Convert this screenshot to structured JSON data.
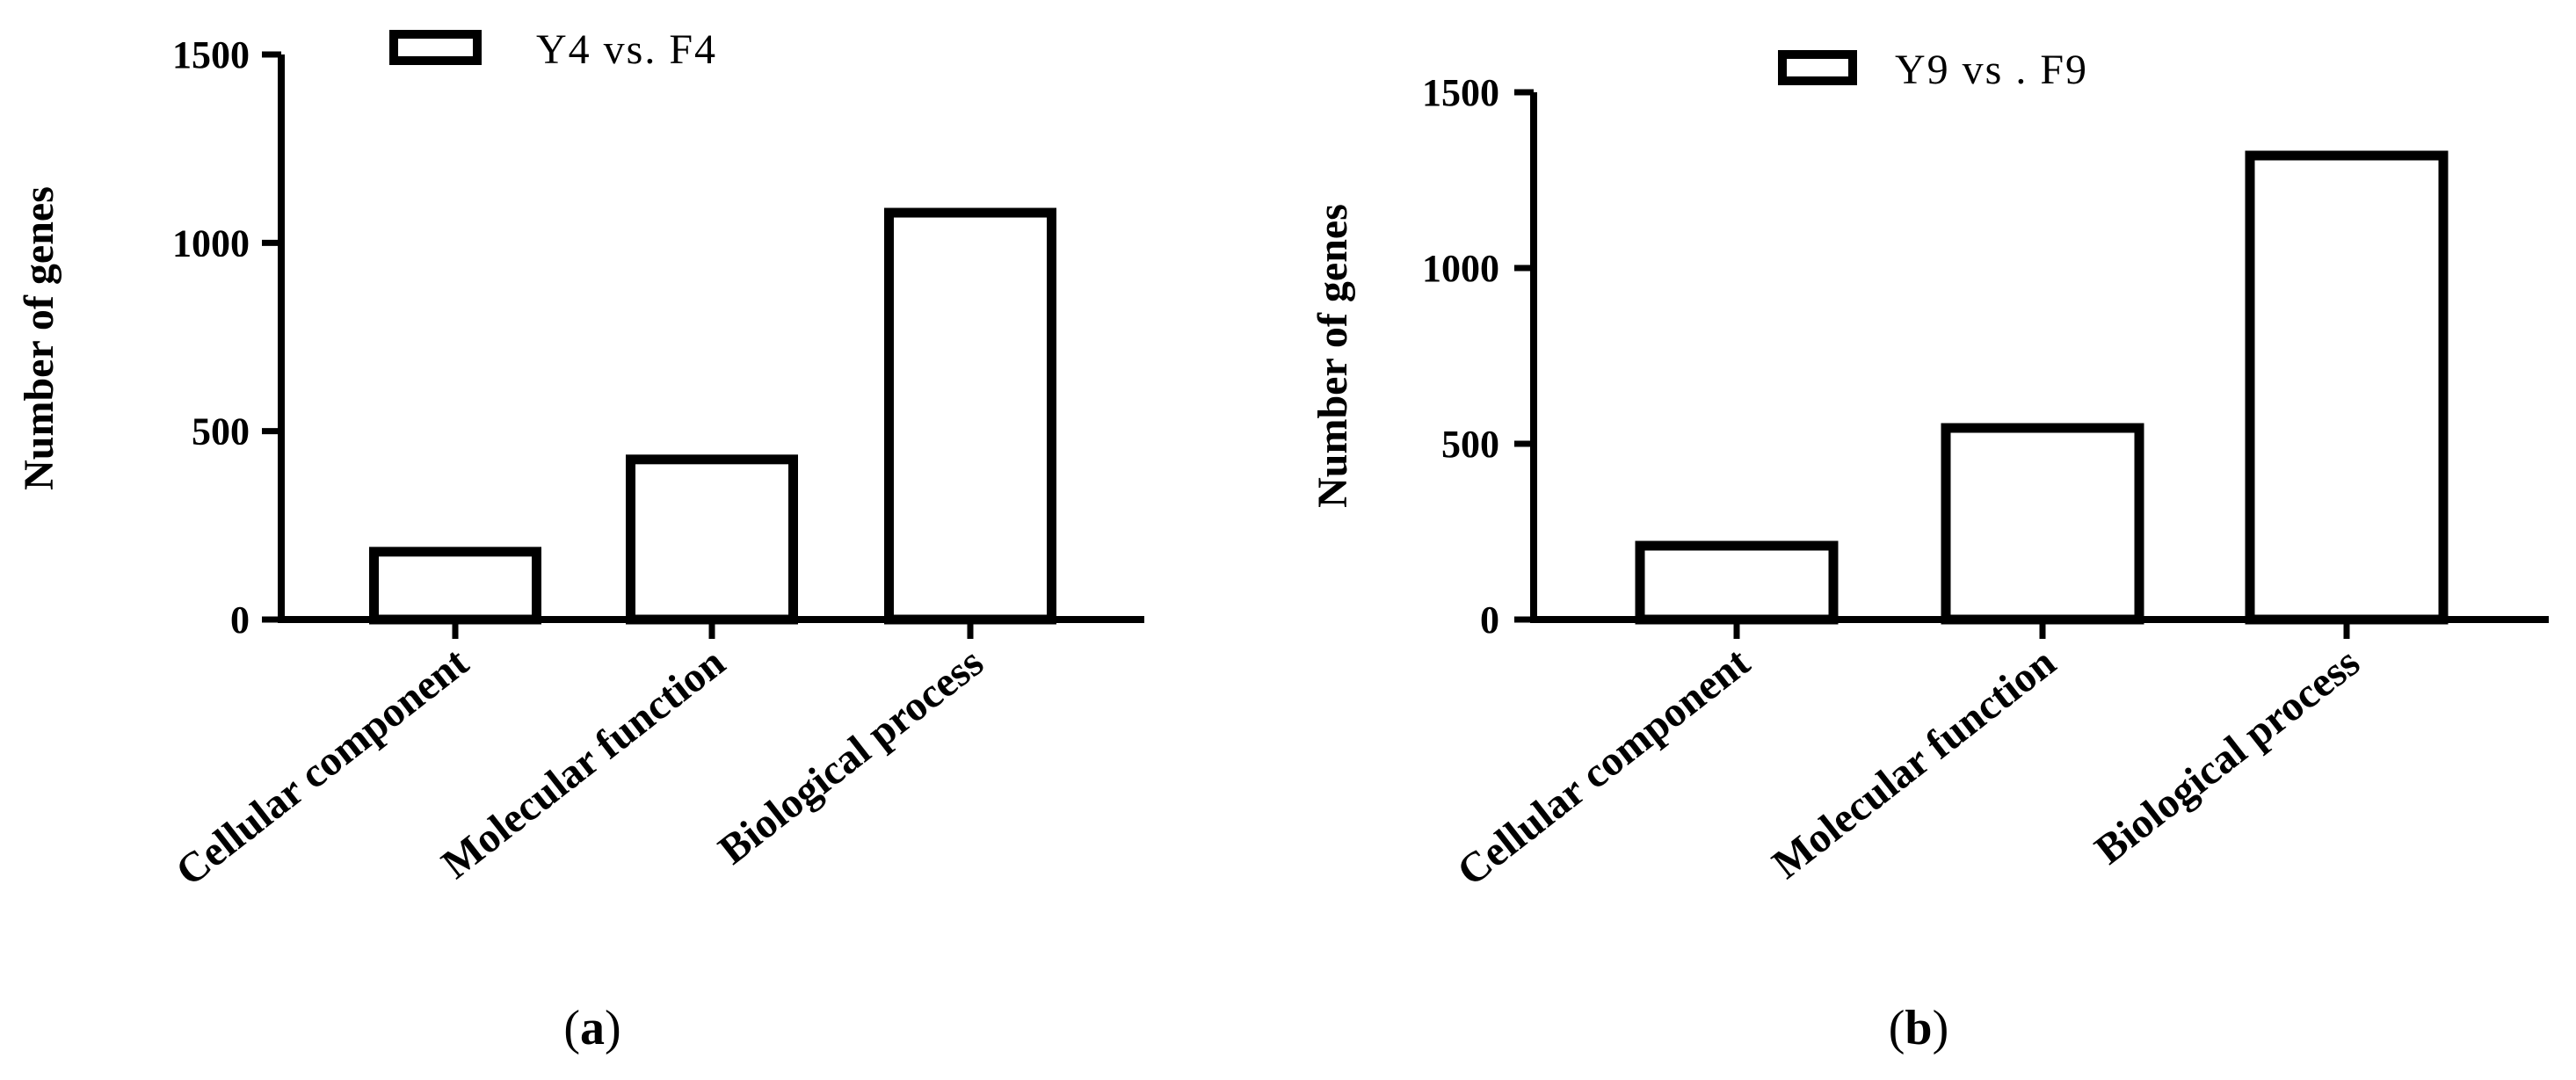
{
  "chart_data": [
    {
      "type": "bar",
      "panel": "a",
      "categories": [
        "Cellular component",
        "Molecular function",
        "Biological process"
      ],
      "series": [
        {
          "name": "Y4  vs.  F4",
          "values": [
            180,
            425,
            1080
          ]
        }
      ],
      "ylabel": "Number of genes",
      "xlabel": "",
      "ylim": [
        0,
        1500
      ],
      "yticks": [
        0,
        500,
        1000,
        1500
      ],
      "legend_position": "top-center",
      "bar_fill": "#ffffff",
      "bar_stroke": "#000000",
      "grid": false
    },
    {
      "type": "bar",
      "panel": "b",
      "categories": [
        "Cellular component",
        "Molecular function",
        "Biological process"
      ],
      "series": [
        {
          "name": "Y9  vs . F9",
          "values": [
            210,
            545,
            1320
          ]
        }
      ],
      "ylabel": "Number of genes",
      "xlabel": "",
      "ylim": [
        0,
        1500
      ],
      "yticks": [
        0,
        500,
        1000,
        1500
      ],
      "legend_position": "top-center",
      "bar_fill": "#ffffff",
      "bar_stroke": "#000000",
      "grid": false
    }
  ],
  "panel_labels": [
    "a",
    "b"
  ]
}
